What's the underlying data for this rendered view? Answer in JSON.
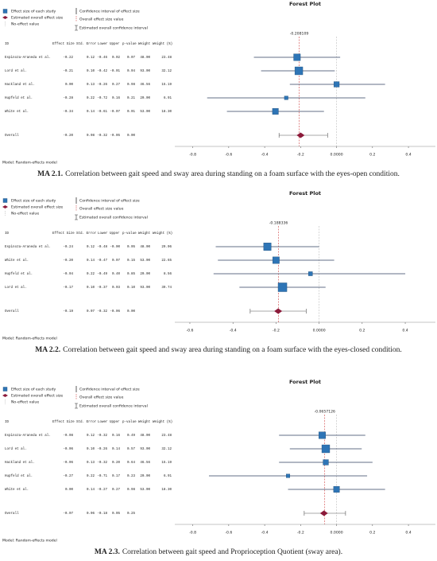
{
  "chart_data": [
    {
      "type": "forest",
      "title": "Forest Plot",
      "legend": [
        "Effect size of each study",
        "Confidence interval of effect size",
        "Estimated overall effect size",
        "Overall effect size value",
        "No-effect value",
        "Estimated overall confidence interval"
      ],
      "columns": [
        "ID",
        "Effect Size",
        "Std. Error",
        "Lower",
        "Upper",
        "p-value",
        "Weight",
        "Weight (%)"
      ],
      "rows": [
        {
          "id": "Espinoza-Araneda et al.",
          "values": [
            -0.22,
            0.12,
            -0.46,
            0.02,
            0.07,
            48,
            23.48
          ],
          "value_labels": [
            "-0.22",
            "0.12",
            "-0.46",
            "0.02",
            "0.07",
            "48.00",
            "23.48"
          ]
        },
        {
          "id": "Lord et al.",
          "values": [
            -0.21,
            0.1,
            -0.42,
            -0.01,
            0.04,
            93,
            32.12
          ],
          "value_labels": [
            "-0.21",
            "0.10",
            "-0.42",
            "-0.01",
            "0.04",
            "93.00",
            "32.12"
          ]
        },
        {
          "id": "Hackland et al.",
          "values": [
            0,
            0.13,
            -0.26,
            0.27,
            0.98,
            46.56,
            15.19
          ],
          "value_labels": [
            "0.00",
            "0.13",
            "-0.26",
            "0.27",
            "0.98",
            "46.56",
            "15.19"
          ]
        },
        {
          "id": "Hupfeld et al.",
          "values": [
            -0.28,
            0.22,
            -0.72,
            0.16,
            0.21,
            20,
            6.91
          ],
          "value_labels": [
            "-0.28",
            "0.22",
            "-0.72",
            "0.16",
            "0.21",
            "20.00",
            "6.91"
          ]
        },
        {
          "id": "White et al.",
          "values": [
            -0.34,
            0.14,
            -0.61,
            -0.07,
            0.01,
            53,
            18.3
          ],
          "value_labels": [
            "-0.34",
            "0.14",
            "-0.61",
            "-0.07",
            "0.01",
            "53.00",
            "18.30"
          ]
        }
      ],
      "overall": {
        "id": "Overall",
        "values": [
          -0.2,
          0.08,
          -0.32,
          -0.05,
          0
        ],
        "value_labels": [
          "-0.20",
          "0.08",
          "-0.32",
          "-0.05",
          "0.00"
        ]
      },
      "ref_value": -0.208109,
      "xlim": [
        -0.9,
        0.55
      ],
      "xticks": [
        -0.8,
        -0.6,
        -0.4,
        -0.2,
        {
          "value": 0,
          "label": "0.0000"
        },
        0.2,
        0.4
      ],
      "model": "Model: Random-effects model",
      "caption_label": "MA 2.1.",
      "caption": "Correlation between gait speed and sway area during standing on a foam surface with the eyes-open condition."
    },
    {
      "type": "forest",
      "title": "Forest Plot",
      "legend": [
        "Effect size of each study",
        "Confidence interval of effect size",
        "Estimated overall effect size",
        "Overall effect size value",
        "No-effect value",
        "Estimated overall confidence interval"
      ],
      "columns": [
        "ID",
        "Effect Size",
        "Std. Error",
        "Lower",
        "Upper",
        "p-value",
        "Weight",
        "Weight (%)"
      ],
      "rows": [
        {
          "id": "Espinoza-Araneda et al.",
          "values": [
            -0.24,
            0.12,
            -0.48,
            0,
            0.05,
            48,
            29.06
          ],
          "value_labels": [
            "-0.24",
            "0.12",
            "-0.48",
            "-0.00",
            "0.05",
            "48.00",
            "29.06"
          ]
        },
        {
          "id": "White et al.",
          "values": [
            -0.2,
            0.14,
            -0.47,
            0.07,
            0.15,
            53,
            22.65
          ],
          "value_labels": [
            "-0.20",
            "0.14",
            "-0.47",
            "0.07",
            "0.15",
            "53.00",
            "22.65"
          ]
        },
        {
          "id": "Hupfeld et al.",
          "values": [
            -0.04,
            0.22,
            -0.49,
            0.4,
            0.85,
            20,
            8.56
          ],
          "value_labels": [
            "-0.04",
            "0.22",
            "-0.49",
            "0.40",
            "0.85",
            "20.00",
            "8.56"
          ]
        },
        {
          "id": "Lord et al.",
          "values": [
            -0.17,
            0.1,
            -0.37,
            0.03,
            0.1,
            93,
            39.74
          ],
          "value_labels": [
            "-0.17",
            "0.10",
            "-0.37",
            "0.03",
            "0.10",
            "93.00",
            "39.74"
          ]
        }
      ],
      "overall": {
        "id": "Overall",
        "values": [
          -0.19,
          0.07,
          -0.32,
          -0.06,
          0
        ],
        "value_labels": [
          "-0.19",
          "0.07",
          "-0.32",
          "-0.06",
          "0.00"
        ]
      },
      "ref_value": -0.188336,
      "xlim": [
        -0.67,
        0.54
      ],
      "xticks": [
        -0.6,
        -0.4,
        -0.2,
        {
          "value": 0,
          "label": "0.0000"
        },
        0.2,
        0.4
      ],
      "model": "Model: Random-effects model",
      "caption_label": "MA 2.2.",
      "caption": "Correlation between gait speed and sway area during standing on a foam surface with the eyes-closed condition."
    },
    {
      "type": "forest",
      "title": "Forest Plot",
      "legend": [
        "Effect size of each study",
        "Confidence interval of effect size",
        "Estimated overall effect size",
        "Overall effect size value",
        "No-effect value",
        "Estimated overall confidence interval"
      ],
      "columns": [
        "ID",
        "Effect Size",
        "Std. Error",
        "Lower",
        "Upper",
        "p-value",
        "Weight",
        "Weight (%)"
      ],
      "rows": [
        {
          "id": "Espinoza-Araneda et al.",
          "values": [
            -0.08,
            0.12,
            -0.32,
            0.16,
            0.49,
            48,
            23.48
          ],
          "value_labels": [
            "-0.08",
            "0.12",
            "-0.32",
            "0.16",
            "0.49",
            "48.00",
            "23.48"
          ]
        },
        {
          "id": "Lord et al.",
          "values": [
            -0.06,
            0.1,
            -0.26,
            0.14,
            0.57,
            93,
            32.12
          ],
          "value_labels": [
            "-0.06",
            "0.10",
            "-0.26",
            "0.14",
            "0.57",
            "93.00",
            "32.12"
          ]
        },
        {
          "id": "Hackland et al.",
          "values": [
            -0.06,
            0.13,
            -0.32,
            0.2,
            0.64,
            46.56,
            15.19
          ],
          "value_labels": [
            "-0.06",
            "0.13",
            "-0.32",
            "0.20",
            "0.64",
            "46.56",
            "15.19"
          ]
        },
        {
          "id": "Hupfeld et al.",
          "values": [
            -0.27,
            0.22,
            -0.71,
            0.17,
            0.23,
            20,
            6.91
          ],
          "value_labels": [
            "-0.27",
            "0.22",
            "-0.71",
            "0.17",
            "0.23",
            "20.00",
            "6.91"
          ]
        },
        {
          "id": "White et al.",
          "values": [
            0,
            0.14,
            -0.27,
            0.27,
            0.98,
            53,
            18.3
          ],
          "value_labels": [
            "0.00",
            "0.14",
            "-0.27",
            "0.27",
            "0.98",
            "53.00",
            "18.30"
          ]
        }
      ],
      "overall": {
        "id": "Overall",
        "values": [
          -0.07,
          0.06,
          -0.18,
          0.05,
          0.25
        ],
        "value_labels": [
          "-0.07",
          "0.06",
          "-0.18",
          "0.05",
          "0.25"
        ]
      },
      "ref_value": -0.0657126,
      "xlim": [
        -0.9,
        0.55
      ],
      "xticks": [
        -0.8,
        -0.6,
        -0.4,
        -0.2,
        {
          "value": 0,
          "label": "0.0000"
        },
        0.2,
        0.4
      ],
      "model": "Model: Random-effects model",
      "caption_label": "MA 2.3.",
      "caption": "Correlation between gait speed and Proprioception Quotient (sway area)."
    }
  ]
}
